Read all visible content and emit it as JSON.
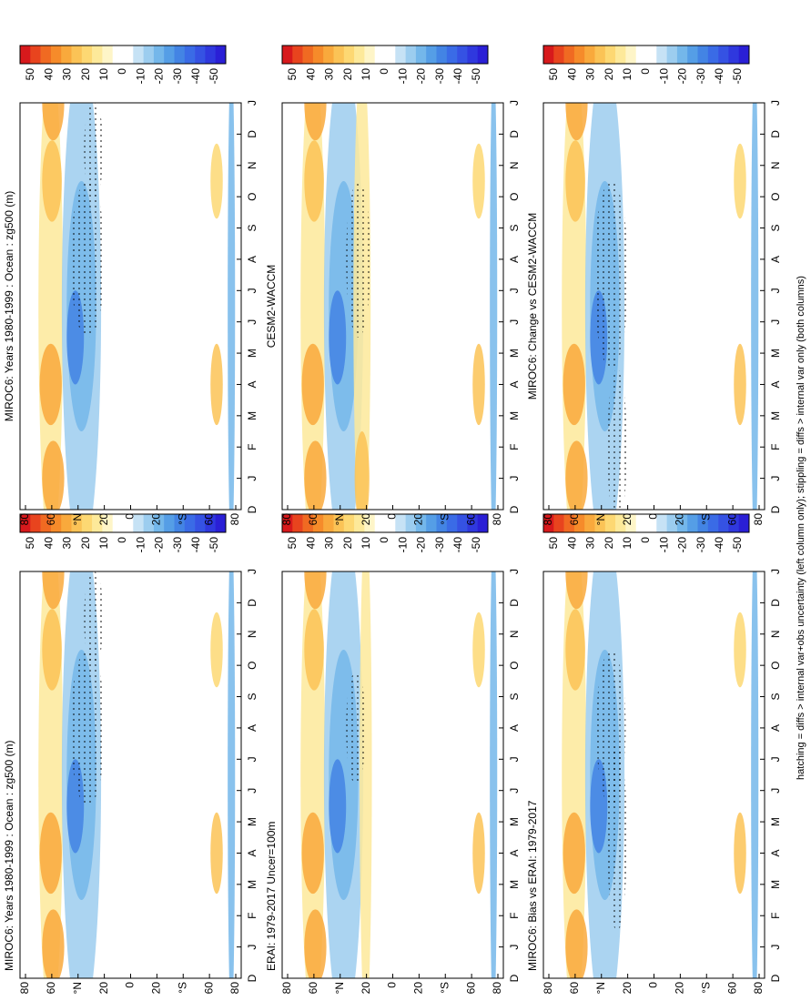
{
  "panels": [
    {
      "title": "MIROC6: Years 1980-1999 : Ocean : zg500 (m)"
    },
    {
      "title": "MIROC6: Years 1980-1999 : Ocean : zg500 (m)"
    },
    {
      "title": "ERAI: 1979-2017 Uncer=100m"
    },
    {
      "title": "CESM2-WACCM"
    },
    {
      "title": "MIROC6: Bias vs ERAI: 1979-2017"
    },
    {
      "title": "MIROC6: Change vs CESM2-WACCM"
    }
  ],
  "months": [
    "D",
    "J",
    "F",
    "M",
    "A",
    "M",
    "J",
    "J",
    "A",
    "S",
    "O",
    "N",
    "D",
    "J"
  ],
  "latitudes": [
    "80",
    "60",
    "°N",
    "20",
    "0",
    "20",
    "°S",
    "60",
    "80"
  ],
  "colorbar": {
    "labels": [
      "50",
      "40",
      "30",
      "20",
      "10",
      "0",
      "-10",
      "-20",
      "-30",
      "-40",
      "-50"
    ],
    "colors": [
      "#d7191c",
      "#e8441e",
      "#f06a22",
      "#f68b2a",
      "#f9a93c",
      "#fbc356",
      "#fdd873",
      "#fde99a",
      "#fef5c8",
      "#ffffff",
      "#ffffff",
      "#c6e2f5",
      "#9ccdef",
      "#74b7ea",
      "#559ee6",
      "#4384e4",
      "#3a6be6",
      "#3552e3",
      "#2f38de",
      "#2a1fd6"
    ]
  },
  "footer": "hatching = diffs > internal var+obs uncertainty (left column only); stippling = diffs > internal var only (both columns)"
}
